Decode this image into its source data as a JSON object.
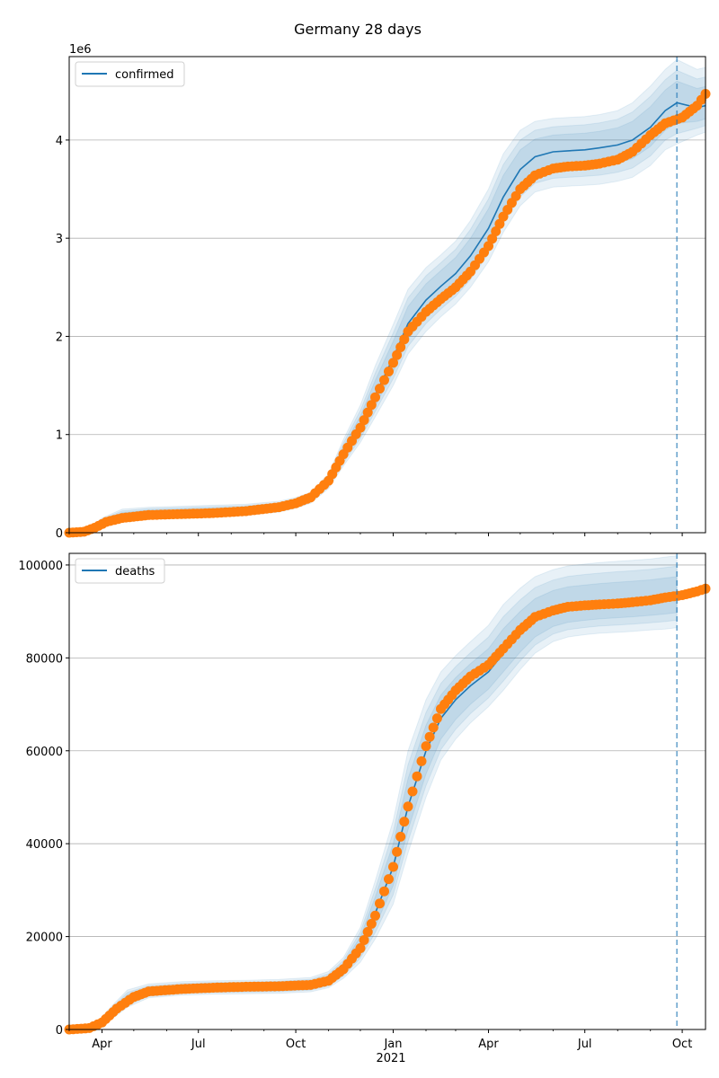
{
  "title": "Germany 28 days",
  "colors": {
    "model": "#1f77b4",
    "observed": "#ff7f0e",
    "band": "#c6dbef",
    "grid": "#b0b0b0",
    "forecast_line": "#1f77b4"
  },
  "x_ticks": [
    "Apr",
    "Jul",
    "Oct",
    "Jan",
    "Apr",
    "Jul",
    "Oct"
  ],
  "x_year_label": "2021",
  "forecast_start": "2021-09-26",
  "chart_data": [
    {
      "type": "line",
      "legend": "confirmed",
      "legend_position": "top-left",
      "grid": "horizontal",
      "y_multiplier": "1e6",
      "y_ticks": [
        "0",
        "1",
        "2",
        "3",
        "4"
      ],
      "xlim": [
        "2020-03-01",
        "2021-10-23"
      ],
      "ylim": [
        0,
        4.85
      ],
      "model": {
        "name": "confirmed",
        "x": [
          "2020-03-01",
          "2020-03-20",
          "2020-04-01",
          "2020-04-20",
          "2020-05-15",
          "2020-06-15",
          "2020-07-15",
          "2020-08-15",
          "2020-09-15",
          "2020-10-01",
          "2020-10-15",
          "2020-11-01",
          "2020-11-15",
          "2020-12-01",
          "2020-12-15",
          "2021-01-01",
          "2021-01-15",
          "2021-02-01",
          "2021-02-15",
          "2021-03-01",
          "2021-03-15",
          "2021-04-01",
          "2021-04-15",
          "2021-05-01",
          "2021-05-15",
          "2021-06-01",
          "2021-06-15",
          "2021-07-01",
          "2021-07-15",
          "2021-08-01",
          "2021-08-15",
          "2021-09-01",
          "2021-09-15",
          "2021-09-26",
          "2021-10-15",
          "2021-10-23"
        ],
        "y": [
          0.0,
          0.02,
          0.1,
          0.17,
          0.2,
          0.21,
          0.22,
          0.23,
          0.26,
          0.3,
          0.35,
          0.52,
          0.8,
          1.08,
          1.4,
          1.78,
          2.13,
          2.37,
          2.51,
          2.64,
          2.82,
          3.1,
          3.42,
          3.7,
          3.83,
          3.88,
          3.89,
          3.9,
          3.92,
          3.95,
          4.0,
          4.13,
          4.3,
          4.38,
          4.33,
          4.35
        ],
        "band_outer": [
          0.0,
          0.04,
          0.15,
          0.24,
          0.26,
          0.27,
          0.28,
          0.29,
          0.32,
          0.36,
          0.41,
          0.6,
          0.95,
          1.3,
          1.7,
          2.12,
          2.48,
          2.7,
          2.83,
          2.97,
          3.18,
          3.5,
          3.86,
          4.1,
          4.19,
          4.22,
          4.23,
          4.24,
          4.26,
          4.3,
          4.38,
          4.55,
          4.72,
          4.82,
          4.72,
          4.74
        ],
        "band_lower": [
          0.0,
          0.0,
          0.06,
          0.12,
          0.15,
          0.16,
          0.17,
          0.18,
          0.21,
          0.25,
          0.3,
          0.45,
          0.68,
          0.92,
          1.18,
          1.5,
          1.82,
          2.05,
          2.2,
          2.33,
          2.5,
          2.76,
          3.06,
          3.33,
          3.47,
          3.52,
          3.53,
          3.54,
          3.55,
          3.58,
          3.62,
          3.74,
          3.9,
          3.96,
          4.05,
          4.08
        ]
      },
      "observed": {
        "name": "observed confirmed",
        "x": [
          "2020-03-01",
          "2020-03-15",
          "2020-03-25",
          "2020-04-05",
          "2020-04-20",
          "2020-05-15",
          "2020-06-15",
          "2020-07-15",
          "2020-08-15",
          "2020-09-15",
          "2020-10-01",
          "2020-10-15",
          "2020-11-01",
          "2020-11-15",
          "2020-12-01",
          "2020-12-15",
          "2021-01-01",
          "2021-01-15",
          "2021-02-01",
          "2021-02-15",
          "2021-03-01",
          "2021-03-15",
          "2021-04-01",
          "2021-04-15",
          "2021-05-01",
          "2021-05-15",
          "2021-06-01",
          "2021-06-15",
          "2021-07-01",
          "2021-07-15",
          "2021-08-01",
          "2021-08-15",
          "2021-09-01",
          "2021-09-15",
          "2021-10-01",
          "2021-10-15",
          "2021-10-23"
        ],
        "y": [
          0.0,
          0.01,
          0.05,
          0.11,
          0.15,
          0.18,
          0.19,
          0.2,
          0.22,
          0.26,
          0.3,
          0.36,
          0.53,
          0.8,
          1.07,
          1.38,
          1.73,
          2.05,
          2.25,
          2.38,
          2.5,
          2.66,
          2.92,
          3.22,
          3.5,
          3.64,
          3.71,
          3.73,
          3.74,
          3.76,
          3.8,
          3.88,
          4.05,
          4.17,
          4.23,
          4.35,
          4.47
        ]
      }
    },
    {
      "type": "line",
      "legend": "deaths",
      "legend_position": "top-left",
      "grid": "horizontal",
      "y_ticks": [
        "0",
        "20000",
        "40000",
        "60000",
        "80000",
        "100000"
      ],
      "xlim": [
        "2020-03-01",
        "2021-10-23"
      ],
      "ylim": [
        0,
        102500
      ],
      "model": {
        "name": "deaths",
        "x": [
          "2020-03-01",
          "2020-03-25",
          "2020-04-10",
          "2020-04-25",
          "2020-05-15",
          "2020-06-15",
          "2020-07-15",
          "2020-08-15",
          "2020-09-15",
          "2020-10-15",
          "2020-11-01",
          "2020-11-15",
          "2020-12-01",
          "2020-12-15",
          "2021-01-01",
          "2021-01-15",
          "2021-02-01",
          "2021-02-15",
          "2021-03-01",
          "2021-03-15",
          "2021-04-01",
          "2021-04-15",
          "2021-05-01",
          "2021-05-15",
          "2021-06-01",
          "2021-06-15",
          "2021-07-01",
          "2021-07-15",
          "2021-08-01",
          "2021-08-15",
          "2021-09-01",
          "2021-09-15",
          "2021-09-26"
        ],
        "y": [
          0,
          500,
          3500,
          6500,
          8200,
          8800,
          9000,
          9100,
          9200,
          9500,
          10500,
          13000,
          18000,
          25000,
          35000,
          48000,
          60000,
          67000,
          71000,
          74000,
          77000,
          81000,
          85000,
          88000,
          90000,
          90800,
          91200,
          91500,
          91800,
          92000,
          92300,
          92700,
          93000
        ],
        "band_outer": [
          0,
          900,
          5000,
          8500,
          9800,
          10300,
          10500,
          10600,
          10800,
          11200,
          12500,
          15500,
          22000,
          32000,
          45000,
          60000,
          71000,
          77000,
          80500,
          83500,
          87000,
          91500,
          95000,
          97500,
          99000,
          99800,
          100200,
          100500,
          100800,
          101000,
          101300,
          101700,
          102000
        ],
        "band_lower": [
          0,
          200,
          2200,
          4800,
          6800,
          7400,
          7600,
          7700,
          7800,
          8100,
          9000,
          11000,
          14500,
          19500,
          27000,
          38000,
          50000,
          58000,
          62500,
          66000,
          69500,
          73000,
          77500,
          81000,
          83500,
          84500,
          85000,
          85300,
          85500,
          85700,
          86000,
          86200,
          86500
        ]
      },
      "observed": {
        "name": "observed deaths",
        "x": [
          "2020-03-01",
          "2020-03-20",
          "2020-04-01",
          "2020-04-15",
          "2020-05-01",
          "2020-05-15",
          "2020-06-15",
          "2020-07-15",
          "2020-08-15",
          "2020-09-15",
          "2020-10-15",
          "2020-11-01",
          "2020-11-15",
          "2020-12-01",
          "2020-12-15",
          "2021-01-01",
          "2021-01-15",
          "2021-02-01",
          "2021-02-15",
          "2021-03-01",
          "2021-03-15",
          "2021-04-01",
          "2021-04-15",
          "2021-05-01",
          "2021-05-15",
          "2021-06-01",
          "2021-06-15",
          "2021-07-01",
          "2021-07-15",
          "2021-08-01",
          "2021-08-15",
          "2021-09-01",
          "2021-09-15",
          "2021-10-01",
          "2021-10-15",
          "2021-10-23"
        ],
        "y": [
          0,
          300,
          1500,
          4500,
          7000,
          8200,
          8700,
          9000,
          9200,
          9300,
          9600,
          10500,
          13000,
          17500,
          24500,
          35000,
          48000,
          61000,
          69000,
          73000,
          76000,
          78500,
          82000,
          86000,
          88800,
          90200,
          91000,
          91300,
          91500,
          91700,
          92000,
          92400,
          93000,
          93500,
          94300,
          94900
        ]
      }
    }
  ]
}
